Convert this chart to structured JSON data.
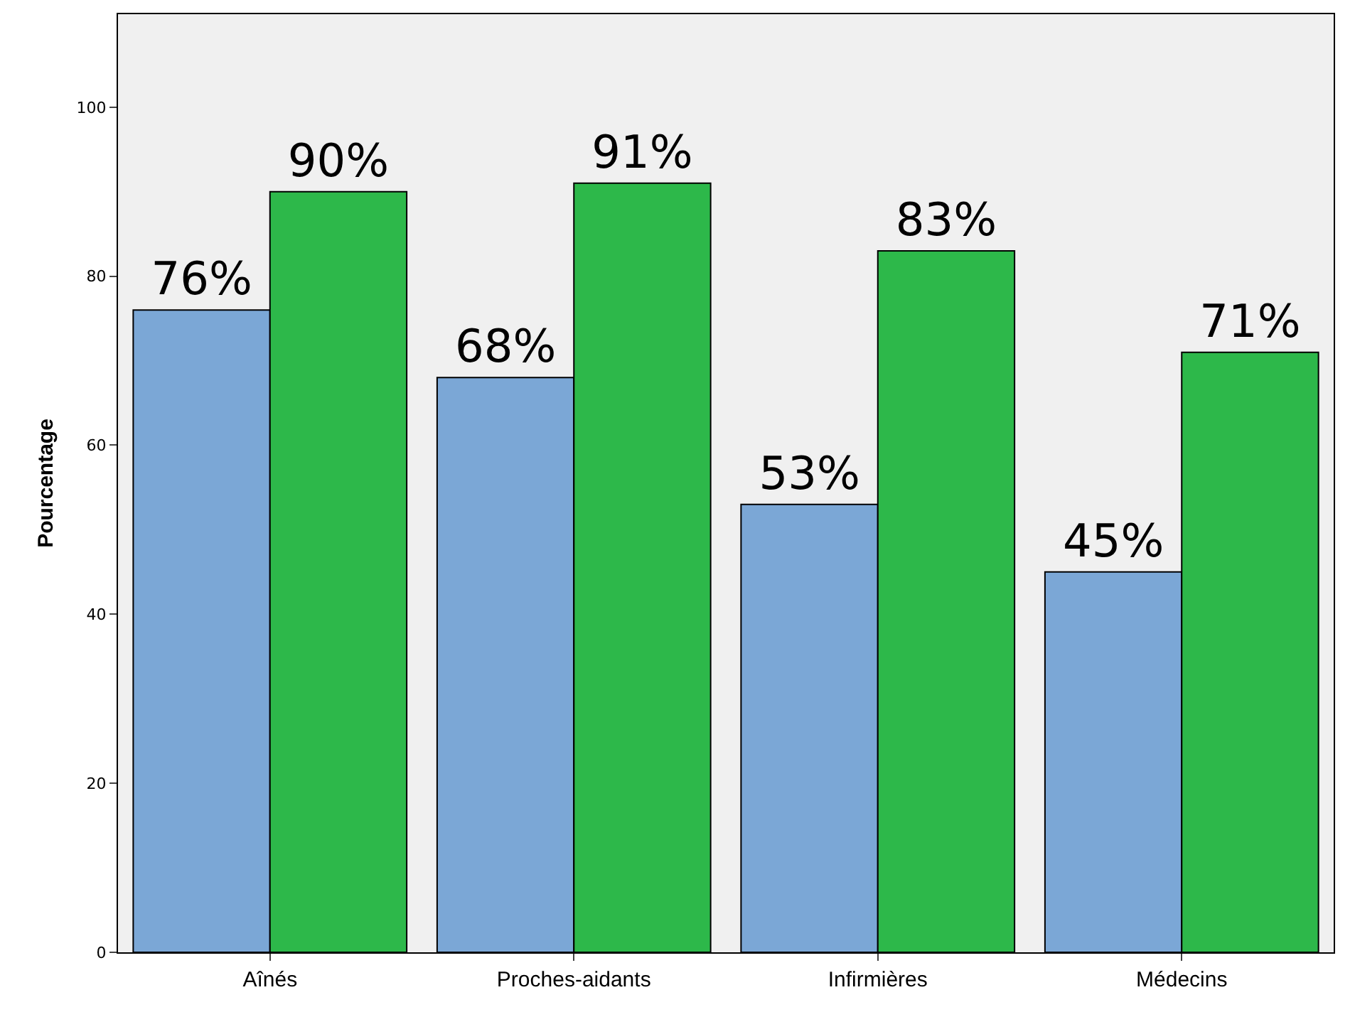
{
  "chart_data": {
    "type": "bar",
    "ylabel": "Pourcentage",
    "categories": [
      "Aînés",
      "Proches-aidants",
      "Infirmières",
      "Médecins"
    ],
    "series": [
      {
        "color": "#7ba7d6",
        "values": [
          76,
          68,
          53,
          45
        ],
        "value_labels": [
          "76%",
          "68%",
          "53%",
          "45%"
        ]
      },
      {
        "color": "#2db84a",
        "values": [
          90,
          91,
          83,
          71
        ],
        "value_labels": [
          "90%",
          "91%",
          "83%",
          "71%"
        ]
      }
    ],
    "ylim": [
      0,
      111
    ],
    "yticks": [
      0,
      20,
      40,
      60,
      80,
      100
    ],
    "grid": false,
    "legend": false
  }
}
